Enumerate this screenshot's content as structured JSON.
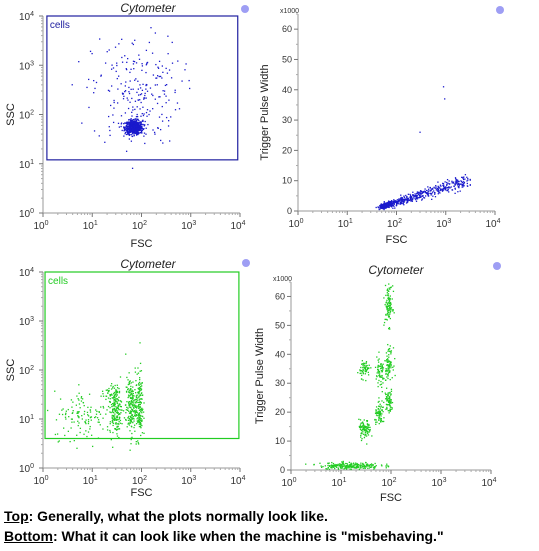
{
  "chart_data": [
    {
      "type": "scatter",
      "title": "Cytometer",
      "xlabel": "FSC",
      "ylabel": "SSC",
      "x_scale": "log",
      "y_scale": "log",
      "xlim": [
        1,
        10000
      ],
      "ylim": [
        1,
        10000
      ],
      "x_ticks": [
        [
          "10",
          "0"
        ],
        [
          "10",
          "1"
        ],
        [
          "10",
          "2"
        ],
        [
          "10",
          "3"
        ],
        [
          "10",
          "4"
        ]
      ],
      "y_ticks": [
        [
          "10",
          "0"
        ],
        [
          "10",
          "1"
        ],
        [
          "10",
          "2"
        ],
        [
          "10",
          "3"
        ],
        [
          "10",
          "4"
        ]
      ],
      "point_color": "#1a1acc",
      "gate": {
        "label": "cells",
        "color": "#2020a0",
        "x_range": [
          1.2,
          9000
        ],
        "y_range": [
          12,
          10000
        ]
      },
      "clusters": [
        {
          "x_center": 70,
          "y_center": 55,
          "x_spread": 0.09,
          "y_spread": 0.07,
          "count": 650
        },
        {
          "x_center": 80,
          "y_center": 300,
          "x_spread": 0.45,
          "y_spread": 0.55,
          "count": 230
        }
      ]
    },
    {
      "type": "scatter",
      "title": "",
      "xlabel": "FSC",
      "ylabel": "Trigger Pulse Width",
      "y_multiplier": "x1000",
      "x_scale": "log",
      "y_scale": "linear",
      "xlim": [
        1,
        10000
      ],
      "ylim": [
        0,
        65
      ],
      "x_ticks": [
        [
          "10",
          "0"
        ],
        [
          "10",
          "1"
        ],
        [
          "10",
          "2"
        ],
        [
          "10",
          "3"
        ],
        [
          "10",
          "4"
        ]
      ],
      "y_ticks": [
        "0",
        "10",
        "20",
        "30",
        "40",
        "50",
        "60"
      ],
      "point_color": "#1a1acc",
      "trend": {
        "x_start": 50,
        "x_end": 3000,
        "y_start": 1.5,
        "y_end": 10,
        "count": 700
      },
      "outliers": [
        {
          "x": 900,
          "y": 41
        },
        {
          "x": 950,
          "y": 37
        },
        {
          "x": 300,
          "y": 26
        },
        {
          "x": 2500,
          "y": 12
        }
      ]
    },
    {
      "type": "scatter",
      "title": "Cytometer",
      "xlabel": "FSC",
      "ylabel": "SSC",
      "x_scale": "log",
      "y_scale": "log",
      "xlim": [
        1,
        10000
      ],
      "ylim": [
        1,
        10000
      ],
      "x_ticks": [
        [
          "10",
          "0"
        ],
        [
          "10",
          "1"
        ],
        [
          "10",
          "2"
        ],
        [
          "10",
          "3"
        ],
        [
          "10",
          "4"
        ]
      ],
      "y_ticks": [
        [
          "10",
          "0"
        ],
        [
          "10",
          "1"
        ],
        [
          "10",
          "2"
        ],
        [
          "10",
          "3"
        ],
        [
          "10",
          "4"
        ]
      ],
      "point_color": "#22cc22",
      "gate": {
        "label": "cells",
        "color": "#22cc22",
        "x_range": [
          1.1,
          9500
        ],
        "y_range": [
          4,
          10000
        ]
      },
      "clusters": [
        {
          "x_center": 8,
          "y_center": 12,
          "x_spread": 0.35,
          "y_spread": 0.25,
          "count": 140
        },
        {
          "x_center": 30,
          "y_center": 15,
          "x_spread": 0.06,
          "y_spread": 0.25,
          "count": 160
        },
        {
          "x_center": 60,
          "y_center": 18,
          "x_spread": 0.05,
          "y_spread": 0.3,
          "count": 170
        },
        {
          "x_center": 90,
          "y_center": 20,
          "x_spread": 0.04,
          "y_spread": 0.35,
          "count": 160
        },
        {
          "x_center": 25,
          "y_center": 32,
          "x_spread": 0.1,
          "y_spread": 0.08,
          "count": 40
        }
      ]
    },
    {
      "type": "scatter",
      "title": "Cytometer",
      "xlabel": "FSC",
      "ylabel": "Trigger Pulse Width",
      "y_multiplier": "x1000",
      "x_scale": "log",
      "y_scale": "linear",
      "xlim": [
        1,
        10000
      ],
      "ylim": [
        0,
        65
      ],
      "x_ticks": [
        [
          "10",
          "0"
        ],
        [
          "10",
          "1"
        ],
        [
          "10",
          "2"
        ],
        [
          "10",
          "3"
        ],
        [
          "10",
          "4"
        ]
      ],
      "y_ticks": [
        "0",
        "10",
        "20",
        "30",
        "40",
        "50",
        "60"
      ],
      "point_color": "#22cc22",
      "clusters": [
        {
          "x_center": 15,
          "y_center": 1.5,
          "x_spread": 0.3,
          "y_spread": 0.6,
          "count": 220
        },
        {
          "x_center": 30,
          "y_center": 14,
          "x_spread": 0.06,
          "y_spread": 1.6,
          "count": 90
        },
        {
          "x_center": 30,
          "y_center": 35,
          "x_spread": 0.05,
          "y_spread": 1.5,
          "count": 60
        },
        {
          "x_center": 60,
          "y_center": 19,
          "x_spread": 0.05,
          "y_spread": 1.8,
          "count": 70
        },
        {
          "x_center": 60,
          "y_center": 33,
          "x_spread": 0.05,
          "y_spread": 3.0,
          "count": 60
        },
        {
          "x_center": 90,
          "y_center": 24,
          "x_spread": 0.04,
          "y_spread": 2.0,
          "count": 70
        },
        {
          "x_center": 90,
          "y_center": 37,
          "x_spread": 0.04,
          "y_spread": 2.5,
          "count": 80
        },
        {
          "x_center": 90,
          "y_center": 57,
          "x_spread": 0.04,
          "y_spread": 3.5,
          "count": 100
        }
      ]
    }
  ],
  "caption": {
    "top_key": "Top",
    "top_text": ": Generally, what the plots normally look like.",
    "bottom_key": "Bottom",
    "bottom_text": ": What it can look like when the machine is \"misbehaving.\""
  }
}
